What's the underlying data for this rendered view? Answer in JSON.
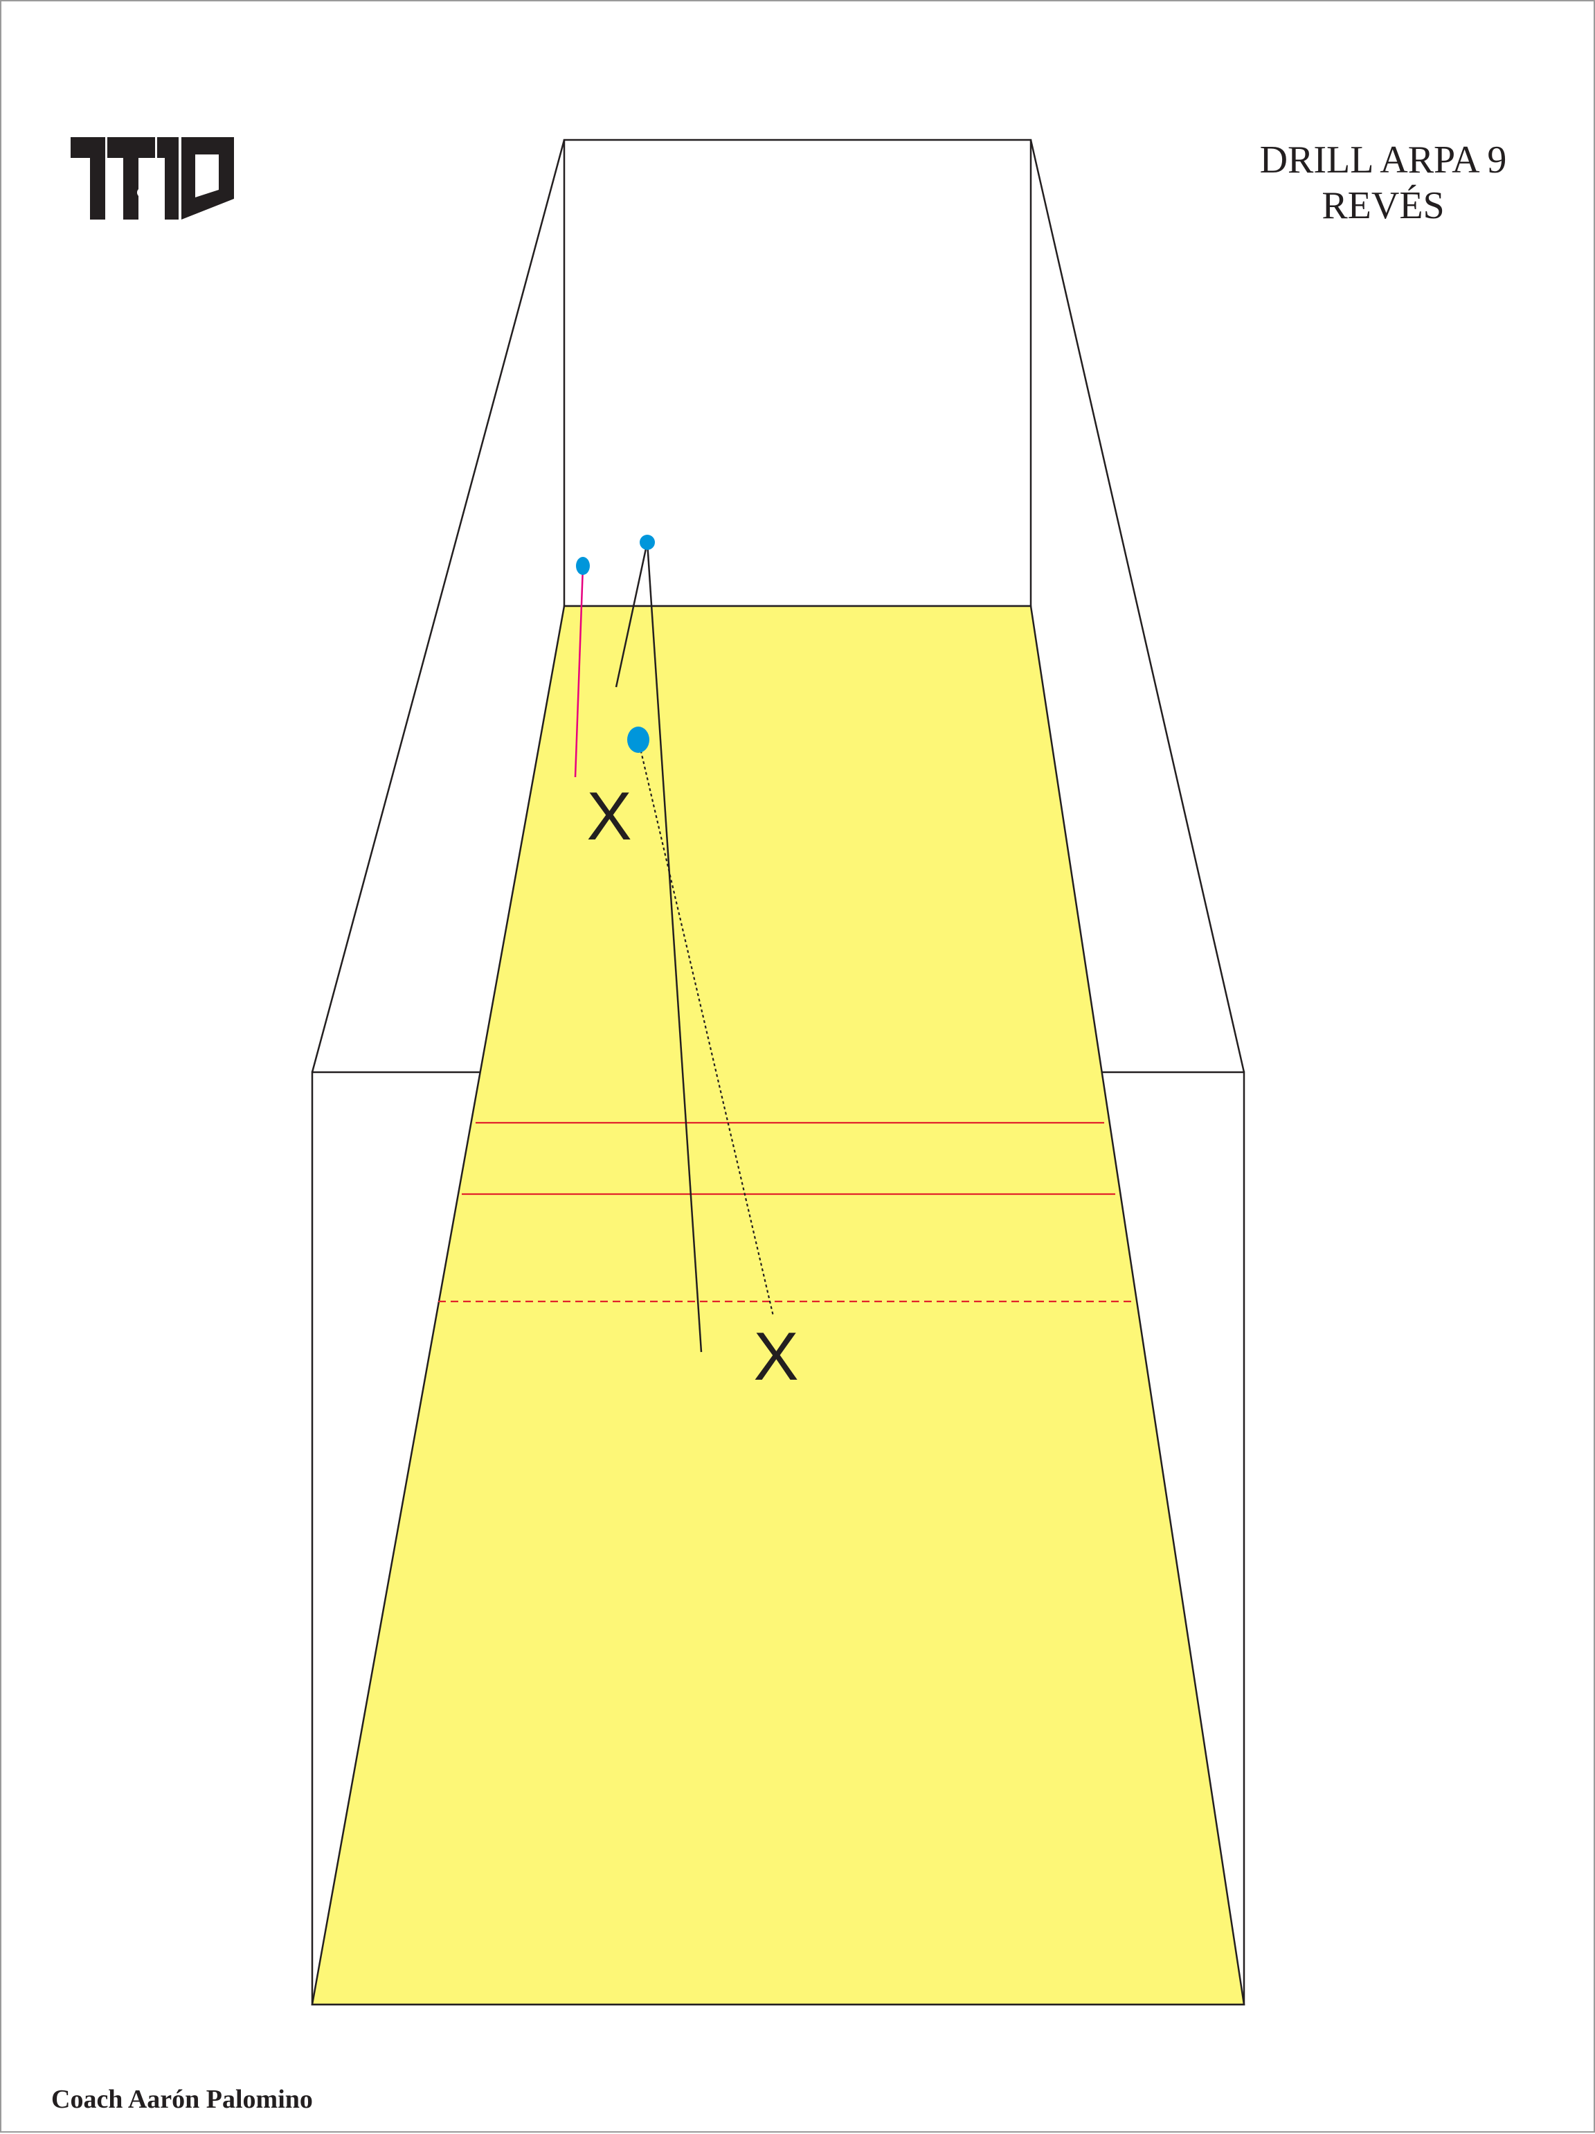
{
  "header": {
    "logo_text": "1T1D",
    "title_line1": "DRILL ARPA 9",
    "title_line2": "REVÉS"
  },
  "footer": {
    "credit": "Coach Aarón Palomino"
  },
  "players": [
    {
      "id": "player-front",
      "label": "X"
    },
    {
      "id": "player-back",
      "label": "X"
    }
  ],
  "balls": [
    {
      "id": "ball-1",
      "color": "#0096db"
    },
    {
      "id": "ball-2",
      "color": "#0096db"
    },
    {
      "id": "ball-3",
      "color": "#0096db"
    }
  ],
  "colors": {
    "floor": "#fdf777",
    "lines": "#231f20",
    "court_lines": "#e1232b",
    "ball": "#0096db",
    "pink_path": "#e6007e"
  }
}
